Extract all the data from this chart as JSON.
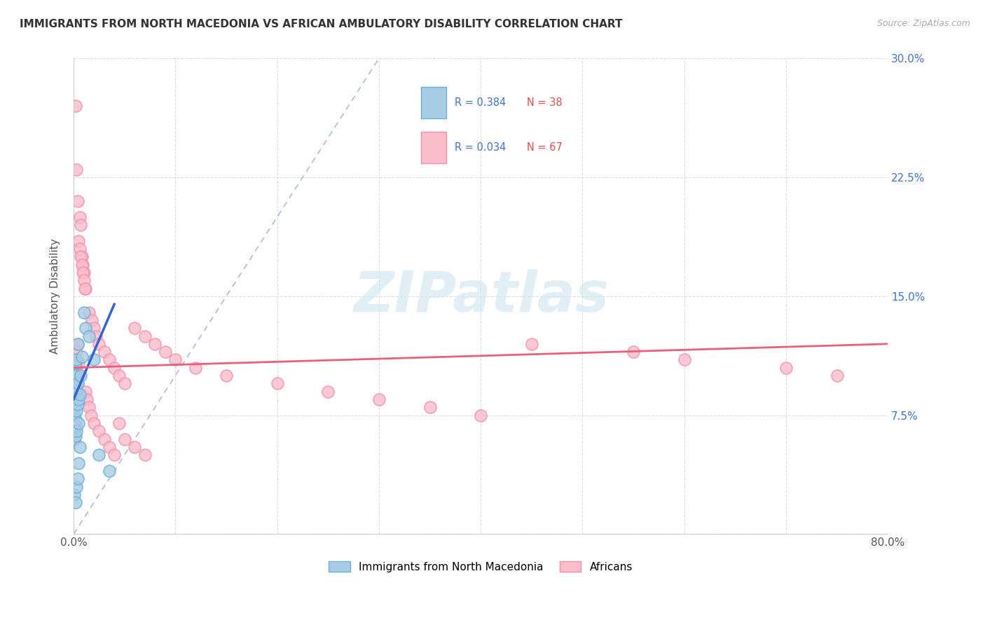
{
  "title": "IMMIGRANTS FROM NORTH MACEDONIA VS AFRICAN AMBULATORY DISABILITY CORRELATION CHART",
  "source": "Source: ZipAtlas.com",
  "ylabel": "Ambulatory Disability",
  "xlim": [
    0.0,
    0.8
  ],
  "ylim": [
    0.0,
    0.3
  ],
  "xticks": [
    0.0,
    0.1,
    0.2,
    0.3,
    0.4,
    0.5,
    0.6,
    0.7,
    0.8
  ],
  "xticklabels": [
    "0.0%",
    "",
    "",
    "",
    "",
    "",
    "",
    "",
    "80.0%"
  ],
  "yticks": [
    0.0,
    0.075,
    0.15,
    0.225,
    0.3
  ],
  "yticklabels_right": [
    "",
    "7.5%",
    "15.0%",
    "22.5%",
    "30.0%"
  ],
  "color_blue_face": "#a8cce4",
  "color_blue_edge": "#6baed6",
  "color_pink_face": "#f8bdc8",
  "color_pink_edge": "#f48fb1",
  "color_blue_line": "#3366cc",
  "color_pink_line": "#e8607a",
  "color_diag_line": "#aabbdd",
  "watermark_text": "ZIPatlas",
  "background_color": "#ffffff",
  "blue_x": [
    0.001,
    0.001,
    0.001,
    0.001,
    0.001,
    0.001,
    0.001,
    0.001,
    0.002,
    0.002,
    0.002,
    0.002,
    0.002,
    0.002,
    0.003,
    0.003,
    0.003,
    0.003,
    0.004,
    0.004,
    0.004,
    0.005,
    0.005,
    0.006,
    0.007,
    0.008,
    0.01,
    0.012,
    0.015,
    0.02,
    0.025,
    0.035,
    0.001,
    0.002,
    0.003,
    0.004,
    0.005,
    0.006
  ],
  "blue_y": [
    0.06,
    0.065,
    0.07,
    0.075,
    0.08,
    0.085,
    0.09,
    0.1,
    0.062,
    0.068,
    0.072,
    0.095,
    0.1,
    0.108,
    0.065,
    0.078,
    0.09,
    0.11,
    0.082,
    0.095,
    0.12,
    0.07,
    0.085,
    0.088,
    0.1,
    0.112,
    0.14,
    0.13,
    0.125,
    0.11,
    0.05,
    0.04,
    0.025,
    0.02,
    0.03,
    0.035,
    0.045,
    0.055
  ],
  "pink_x": [
    0.001,
    0.001,
    0.002,
    0.002,
    0.003,
    0.003,
    0.004,
    0.004,
    0.005,
    0.005,
    0.006,
    0.007,
    0.008,
    0.009,
    0.01,
    0.012,
    0.015,
    0.018,
    0.02,
    0.022,
    0.025,
    0.03,
    0.035,
    0.04,
    0.045,
    0.05,
    0.06,
    0.07,
    0.08,
    0.09,
    0.1,
    0.12,
    0.15,
    0.2,
    0.25,
    0.3,
    0.35,
    0.4,
    0.45,
    0.55,
    0.6,
    0.7,
    0.75,
    0.002,
    0.003,
    0.004,
    0.005,
    0.006,
    0.007,
    0.008,
    0.009,
    0.01,
    0.011,
    0.012,
    0.013,
    0.015,
    0.017,
    0.02,
    0.025,
    0.03,
    0.035,
    0.04,
    0.045,
    0.05,
    0.06,
    0.07
  ],
  "pink_y": [
    0.098,
    0.108,
    0.1,
    0.11,
    0.105,
    0.115,
    0.095,
    0.12,
    0.1,
    0.108,
    0.2,
    0.195,
    0.175,
    0.17,
    0.165,
    0.155,
    0.14,
    0.135,
    0.13,
    0.125,
    0.12,
    0.115,
    0.11,
    0.105,
    0.1,
    0.095,
    0.13,
    0.125,
    0.12,
    0.115,
    0.11,
    0.105,
    0.1,
    0.095,
    0.09,
    0.085,
    0.08,
    0.075,
    0.12,
    0.115,
    0.11,
    0.105,
    0.1,
    0.27,
    0.23,
    0.21,
    0.185,
    0.18,
    0.175,
    0.17,
    0.165,
    0.16,
    0.155,
    0.09,
    0.085,
    0.08,
    0.075,
    0.07,
    0.065,
    0.06,
    0.055,
    0.05,
    0.07,
    0.06,
    0.055,
    0.05
  ],
  "blue_trend_x": [
    0.0,
    0.04
  ],
  "blue_trend_y": [
    0.085,
    0.145
  ],
  "pink_trend_x": [
    0.0,
    0.8
  ],
  "pink_trend_y": [
    0.105,
    0.12
  ]
}
